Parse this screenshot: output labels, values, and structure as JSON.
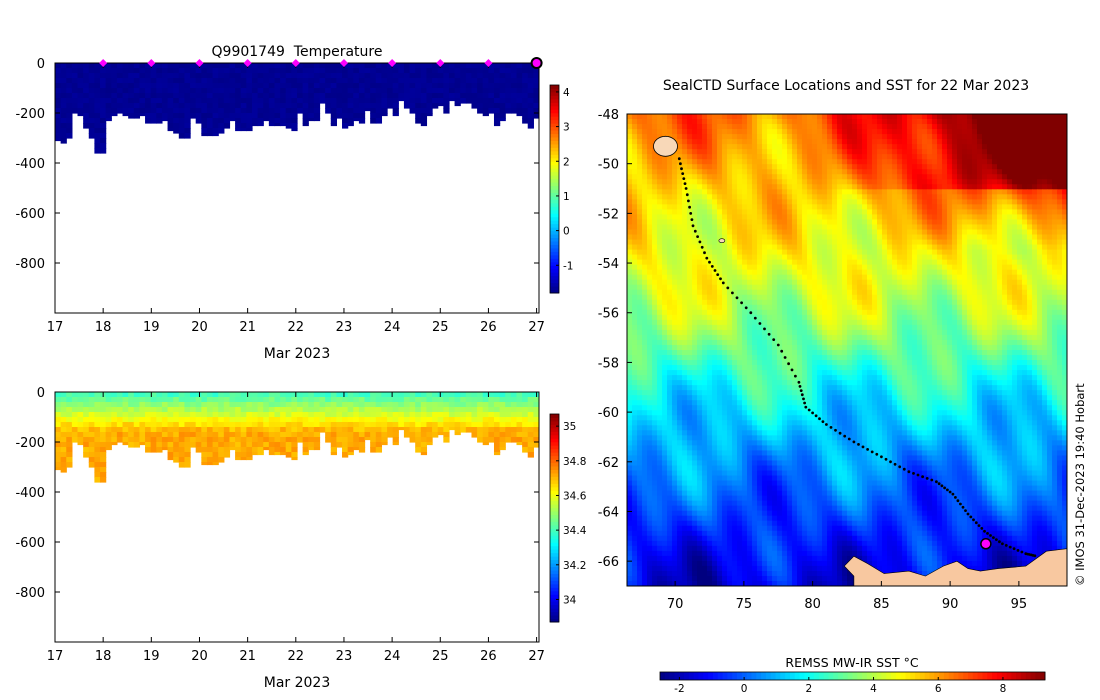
{
  "chart_data": [
    {
      "type": "heatmap",
      "panel": "temperature-profile-section",
      "title": "Q9901749  Temperature",
      "xlabel": "Mar 2023",
      "ylabel": "",
      "x_ticks": [
        17,
        18,
        19,
        20,
        21,
        22,
        23,
        24,
        25,
        26,
        27
      ],
      "x_range": [
        17,
        27.05
      ],
      "y_ticks": [
        0,
        -200,
        -400,
        -600,
        -800
      ],
      "y_range": [
        -1000,
        0
      ],
      "colorbar": {
        "ticks": [
          4,
          3,
          2,
          1,
          0,
          -1
        ],
        "range": [
          -1.8,
          4.2
        ],
        "colormap": "jet"
      },
      "profile_max_depths": [
        310,
        320,
        300,
        200,
        210,
        260,
        300,
        360,
        360,
        230,
        210,
        200,
        210,
        220,
        220,
        210,
        240,
        240,
        240,
        230,
        270,
        280,
        300,
        300,
        220,
        240,
        290,
        290,
        290,
        280,
        260,
        230,
        270,
        270,
        270,
        250,
        250,
        230,
        250,
        250,
        250,
        260,
        270,
        200,
        250,
        230,
        230,
        160,
        200,
        250,
        220,
        260,
        250,
        230,
        240,
        190,
        240,
        240,
        210,
        180,
        210,
        150,
        180,
        200,
        240,
        250,
        210,
        180,
        170,
        200,
        150,
        170,
        160,
        160,
        180,
        200,
        210,
        200,
        250,
        230,
        200,
        200,
        210,
        240,
        260,
        220
      ],
      "surface_markers_day": [
        18,
        19,
        20,
        21,
        22,
        23,
        24,
        25,
        26,
        27
      ],
      "latest_marker_day": 27
    },
    {
      "type": "heatmap",
      "panel": "salinity-profile-section",
      "title": "",
      "xlabel": "Mar 2023",
      "x_ticks": [
        17,
        18,
        19,
        20,
        21,
        22,
        23,
        24,
        25,
        26,
        27
      ],
      "x_range": [
        17,
        27.05
      ],
      "y_ticks": [
        0,
        -200,
        -400,
        -600,
        -800
      ],
      "y_range": [
        -1000,
        0
      ],
      "colorbar": {
        "ticks": [
          35,
          34.8,
          34.6,
          34.4,
          34.2,
          34
        ],
        "range": [
          33.87,
          35.07
        ],
        "colormap": "jet"
      },
      "surface_value": 34.4,
      "deep_value": 34.72
    },
    {
      "type": "map",
      "panel": "sst-map",
      "title": "SealCTD Surface Locations and SST for 22 Mar 2023",
      "x_ticks": [
        70,
        75,
        80,
        85,
        90,
        95
      ],
      "x_range": [
        66.5,
        98.5
      ],
      "y_ticks": [
        -48,
        -50,
        -52,
        -54,
        -56,
        -58,
        -60,
        -62,
        -64,
        -66
      ],
      "y_range": [
        -67,
        -48
      ],
      "track_waypoints": [
        [
          70.3,
          -49.8
        ],
        [
          70.8,
          -51
        ],
        [
          71.3,
          -52.5
        ],
        [
          72.3,
          -53.8
        ],
        [
          73.5,
          -54.8
        ],
        [
          75.5,
          -56
        ],
        [
          77.5,
          -57.3
        ],
        [
          79,
          -58.8
        ],
        [
          79.5,
          -59.8
        ],
        [
          81,
          -60.5
        ],
        [
          83,
          -61.2
        ],
        [
          85,
          -61.8
        ],
        [
          87,
          -62.4
        ],
        [
          89,
          -62.8
        ],
        [
          90.2,
          -63.3
        ],
        [
          91.3,
          -64.1
        ],
        [
          92.5,
          -64.8
        ],
        [
          93.8,
          -65.3
        ],
        [
          95.5,
          -65.7
        ],
        [
          96.3,
          -65.8
        ]
      ],
      "latest_position": [
        92.6,
        -65.3
      ],
      "colorbar": {
        "label": "REMSS MW-IR SST °C",
        "ticks": [
          -2,
          0,
          2,
          4,
          6,
          8
        ],
        "range": [
          -2.6,
          9.3
        ],
        "colormap": "jet"
      }
    }
  ],
  "credit": "© IMOS 31-Dec-2023 19:40 Hobart",
  "colors": {
    "marker": "#ff00ff",
    "land": "#f8c8a0",
    "track": "#000000"
  }
}
